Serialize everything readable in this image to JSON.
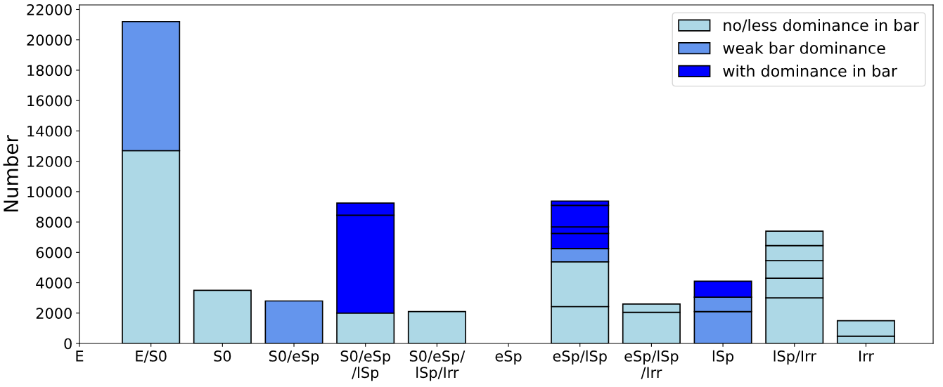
{
  "chart_data": {
    "type": "bar",
    "stacked": true,
    "ylabel": "Number",
    "categories": [
      "E",
      "E/S0",
      "S0",
      "S0/eSp",
      "S0/eSp\n/lSp",
      "S0/eSp/\nlSp/Irr",
      "eSp",
      "eSp/lSp",
      "eSp/lSp\n/Irr",
      "lSp",
      "lSp/Irr",
      "Irr"
    ],
    "ylim": [
      0,
      22300
    ],
    "yticks": [
      0,
      2000,
      4000,
      6000,
      8000,
      10000,
      12000,
      14000,
      16000,
      18000,
      20000,
      22000
    ],
    "legend": "top right",
    "grid": false,
    "series": [
      {
        "name": "no/less dominance in bar",
        "color": "#add8e6",
        "values": [
          null,
          12700,
          3500,
          null,
          2000,
          2100,
          null,
          2430,
          2050,
          null,
          3000,
          480
        ]
      },
      {
        "color": "#add8e6",
        "values": [
          null,
          null,
          null,
          null,
          null,
          null,
          null,
          2950,
          550,
          null,
          1300,
          1020
        ]
      },
      {
        "color": "#add8e6",
        "values": [
          null,
          null,
          null,
          null,
          null,
          null,
          null,
          null,
          null,
          null,
          1150,
          null
        ]
      },
      {
        "color": "#add8e6",
        "values": [
          null,
          null,
          null,
          null,
          null,
          null,
          null,
          null,
          null,
          null,
          1000,
          null
        ]
      },
      {
        "color": "#add8e6",
        "values": [
          null,
          null,
          null,
          null,
          null,
          null,
          null,
          null,
          null,
          null,
          950,
          null
        ]
      },
      {
        "name": "weak bar dominance",
        "color": "#6495ed",
        "values": [
          null,
          8500,
          null,
          2800,
          null,
          null,
          null,
          870,
          null,
          2100,
          null,
          null
        ]
      },
      {
        "color": "#6495ed",
        "values": [
          null,
          null,
          null,
          null,
          null,
          null,
          null,
          null,
          null,
          950,
          null,
          null
        ]
      },
      {
        "name": "with dominance in bar",
        "color": "#0000ff",
        "values": [
          null,
          null,
          null,
          null,
          6450,
          null,
          null,
          1000,
          null,
          1050,
          null,
          null
        ]
      },
      {
        "color": "#0000ff",
        "values": [
          null,
          null,
          null,
          null,
          800,
          null,
          null,
          430,
          null,
          null,
          null,
          null
        ]
      },
      {
        "color": "#0000ff",
        "values": [
          null,
          null,
          null,
          null,
          null,
          null,
          null,
          1420,
          null,
          null,
          null,
          null
        ]
      },
      {
        "color": "#0000ff",
        "values": [
          null,
          null,
          null,
          null,
          null,
          null,
          null,
          280,
          null,
          null,
          null,
          null
        ]
      }
    ]
  }
}
